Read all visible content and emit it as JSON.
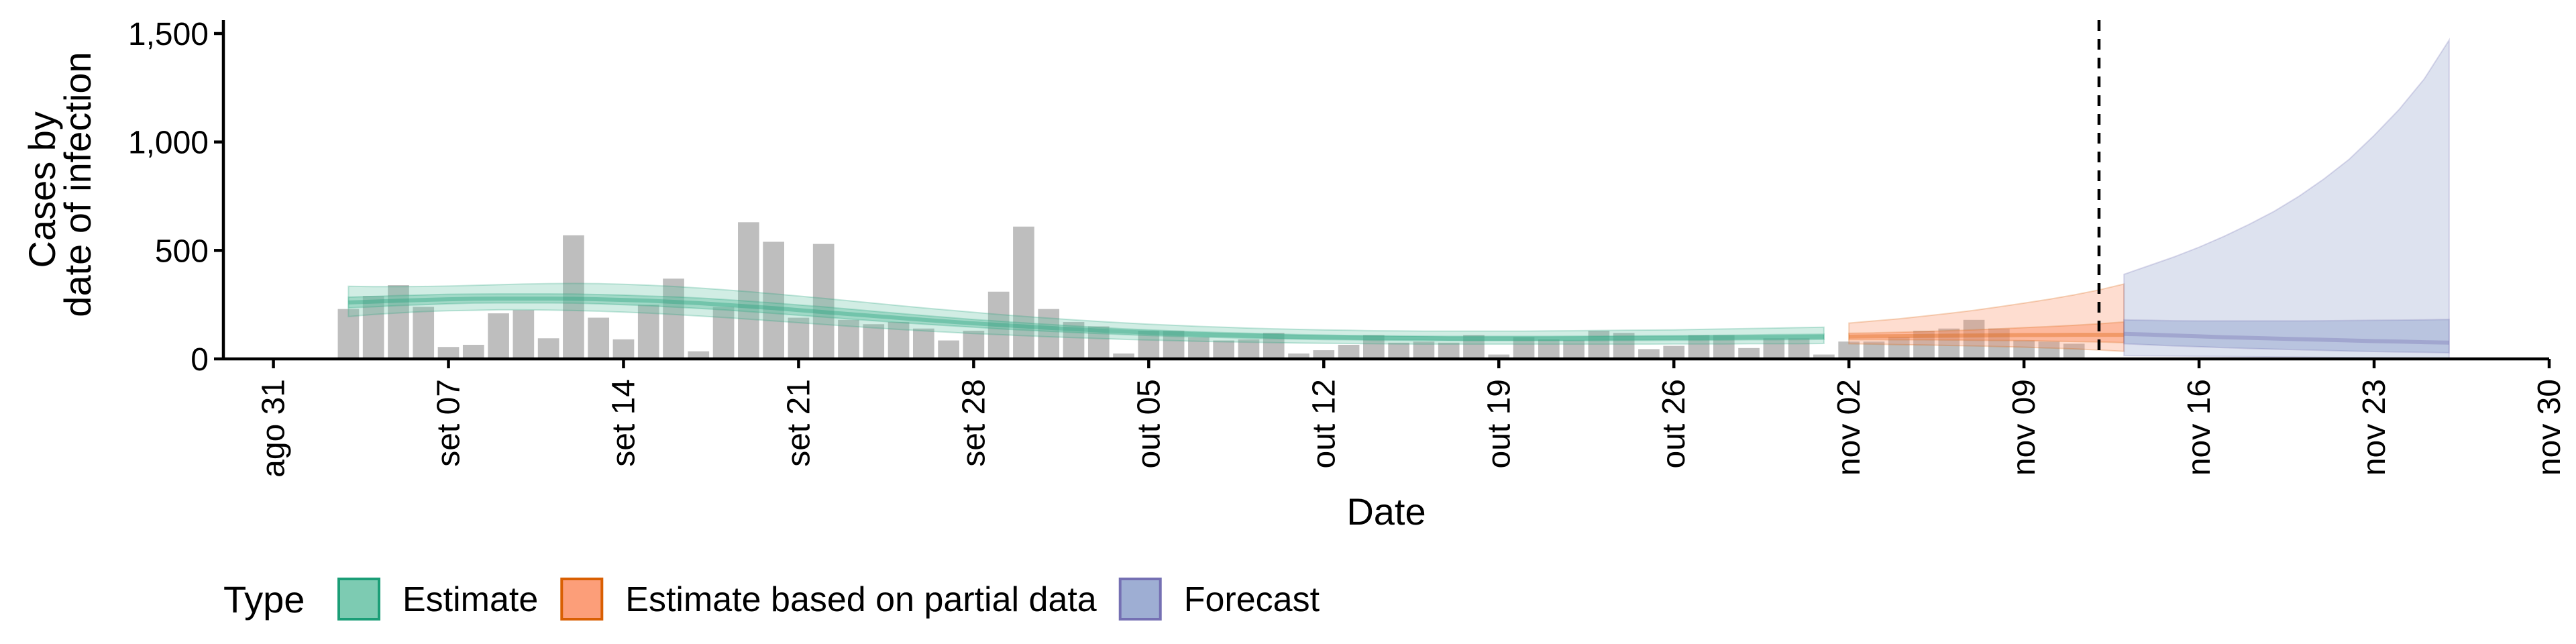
{
  "chart_data": {
    "type": "bar",
    "xlabel": "Date",
    "ylabel_lines": [
      "Cases by",
      "date of infection"
    ],
    "ylim": [
      0,
      1500
    ],
    "yticks": [
      0,
      500,
      1000,
      1500
    ],
    "ytick_labels": [
      "0",
      "500",
      "1,000",
      "1,500"
    ],
    "x_tick_dates": [
      "2020-08-31",
      "2020-09-07",
      "2020-09-14",
      "2020-09-21",
      "2020-09-28",
      "2020-10-05",
      "2020-10-12",
      "2020-10-19",
      "2020-10-26",
      "2020-11-02",
      "2020-11-09",
      "2020-11-16",
      "2020-11-23",
      "2020-11-30"
    ],
    "x_tick_labels": [
      "ago 31",
      "set 07",
      "set 14",
      "set 21",
      "set 28",
      "out 05",
      "out 12",
      "out 19",
      "out 26",
      "nov 02",
      "nov 09",
      "nov 16",
      "nov 23",
      "nov 30"
    ],
    "xlim": [
      "2020-08-29",
      "2020-11-30"
    ],
    "forecast_start_marker": "2020-11-12",
    "bars": {
      "start_date": "2020-09-03",
      "color": "#bebebe",
      "values": [
        230,
        290,
        340,
        240,
        55,
        65,
        210,
        225,
        95,
        570,
        190,
        90,
        250,
        370,
        35,
        240,
        630,
        540,
        190,
        530,
        180,
        160,
        170,
        140,
        85,
        130,
        310,
        610,
        230,
        170,
        150,
        25,
        130,
        130,
        100,
        85,
        90,
        120,
        25,
        40,
        65,
        110,
        75,
        80,
        75,
        110,
        20,
        100,
        90,
        85,
        130,
        120,
        45,
        60,
        110,
        110,
        50,
        95,
        95,
        20,
        80,
        80,
        100,
        130,
        140,
        180,
        140,
        85,
        80,
        70
      ]
    },
    "series": [
      {
        "name": "Estimate",
        "color": "#1b9e77",
        "fill": "#66c2a5",
        "start_date": "2020-09-03",
        "median": [
          260,
          264,
          268,
          272,
          275,
          277,
          278,
          278,
          278,
          277,
          275,
          272,
          268,
          263,
          257,
          250,
          242,
          234,
          225,
          216,
          207,
          198,
          189,
          180,
          172,
          164,
          157,
          150,
          143,
          137,
          131,
          126,
          121,
          117,
          113,
          110,
          107,
          104,
          102,
          100,
          98,
          97,
          96,
          95,
          94,
          94,
          94,
          94,
          94,
          94,
          95,
          95,
          96,
          97,
          97,
          98,
          99,
          100,
          101,
          102
        ],
        "inner_lower": [
          235,
          240,
          246,
          250,
          254,
          257,
          258,
          258,
          258,
          257,
          254,
          250,
          245,
          239,
          233,
          226,
          218,
          210,
          201,
          193,
          184,
          176,
          168,
          160,
          153,
          146,
          139,
          133,
          127,
          122,
          117,
          112,
          108,
          104,
          101,
          98,
          95,
          93,
          91,
          89,
          88,
          86,
          85,
          85,
          84,
          84,
          84,
          84,
          84,
          84,
          84,
          85,
          85,
          86,
          86,
          87,
          88,
          88,
          89,
          90
        ],
        "inner_upper": [
          285,
          288,
          292,
          295,
          298,
          299,
          300,
          300,
          300,
          299,
          297,
          294,
          290,
          286,
          281,
          274,
          266,
          258,
          249,
          240,
          230,
          220,
          210,
          200,
          191,
          182,
          174,
          166,
          159,
          152,
          145,
          139,
          134,
          129,
          125,
          121,
          118,
          115,
          112,
          110,
          108,
          107,
          106,
          105,
          104,
          104,
          104,
          104,
          104,
          105,
          105,
          106,
          107,
          107,
          108,
          109,
          110,
          112,
          113,
          114
        ],
        "outer_lower": [
          195,
          205,
          212,
          218,
          222,
          224,
          226,
          226,
          225,
          223,
          220,
          216,
          211,
          205,
          198,
          191,
          183,
          175,
          167,
          159,
          151,
          143,
          136,
          129,
          123,
          117,
          112,
          107,
          102,
          98,
          94,
          90,
          87,
          84,
          81,
          79,
          77,
          75,
          73,
          72,
          71,
          70,
          69,
          68,
          68,
          68,
          68,
          68,
          68,
          68,
          68,
          68,
          68,
          69,
          69,
          69,
          70,
          70,
          70,
          71
        ],
        "outer_upper": [
          335,
          333,
          333,
          334,
          336,
          339,
          342,
          345,
          347,
          348,
          347,
          344,
          340,
          334,
          327,
          319,
          310,
          300,
          290,
          279,
          268,
          257,
          246,
          235,
          225,
          215,
          205,
          196,
          188,
          180,
          173,
          166,
          160,
          155,
          150,
          146,
          142,
          139,
          136,
          134,
          132,
          130,
          129,
          128,
          128,
          128,
          128,
          128,
          129,
          130,
          131,
          132,
          133,
          134,
          136,
          138,
          140,
          142,
          144,
          146
        ]
      },
      {
        "name": "Estimate based on partial data",
        "color": "#d95f02",
        "fill": "#fc8d62",
        "start_date": "2020-11-02",
        "median": [
          103,
          104,
          105,
          106,
          107,
          108,
          109,
          110,
          110,
          111,
          111,
          111
        ],
        "inner_lower": [
          88,
          88,
          88,
          88,
          87,
          86,
          85,
          84,
          82,
          80,
          78,
          75
        ],
        "inner_upper": [
          118,
          120,
          123,
          126,
          130,
          134,
          139,
          144,
          149,
          155,
          162,
          170
        ],
        "outer_lower": [
          70,
          68,
          66,
          64,
          62,
          60,
          57,
          54,
          50,
          46,
          41,
          35
        ],
        "outer_upper": [
          165,
          175,
          185,
          197,
          210,
          224,
          240,
          257,
          275,
          295,
          318,
          345
        ]
      },
      {
        "name": "Forecast",
        "color": "#7570b3",
        "fill": "#8da0cb",
        "start_date": "2020-11-13",
        "median": [
          115,
          112,
          108,
          104,
          100,
          97,
          94,
          91,
          88,
          85,
          82,
          80,
          77,
          75
        ],
        "inner_lower": [
          70,
          65,
          60,
          56,
          52,
          48,
          45,
          42,
          39,
          36,
          34,
          32,
          30,
          28
        ],
        "inner_upper": [
          180,
          178,
          176,
          175,
          175,
          175,
          175,
          175,
          176,
          177,
          178,
          179,
          180,
          182
        ],
        "outer_lower": [
          15,
          14,
          13,
          12,
          11,
          10,
          9,
          8,
          7,
          6,
          5,
          4,
          3,
          2
        ],
        "outer_upper": [
          390,
          430,
          470,
          515,
          565,
          620,
          680,
          750,
          830,
          920,
          1030,
          1150,
          1290,
          1470
        ]
      }
    ],
    "legend": {
      "title": "Type",
      "position": "bottom-left",
      "items": [
        "Estimate",
        "Estimate based on partial data",
        "Forecast"
      ]
    }
  }
}
